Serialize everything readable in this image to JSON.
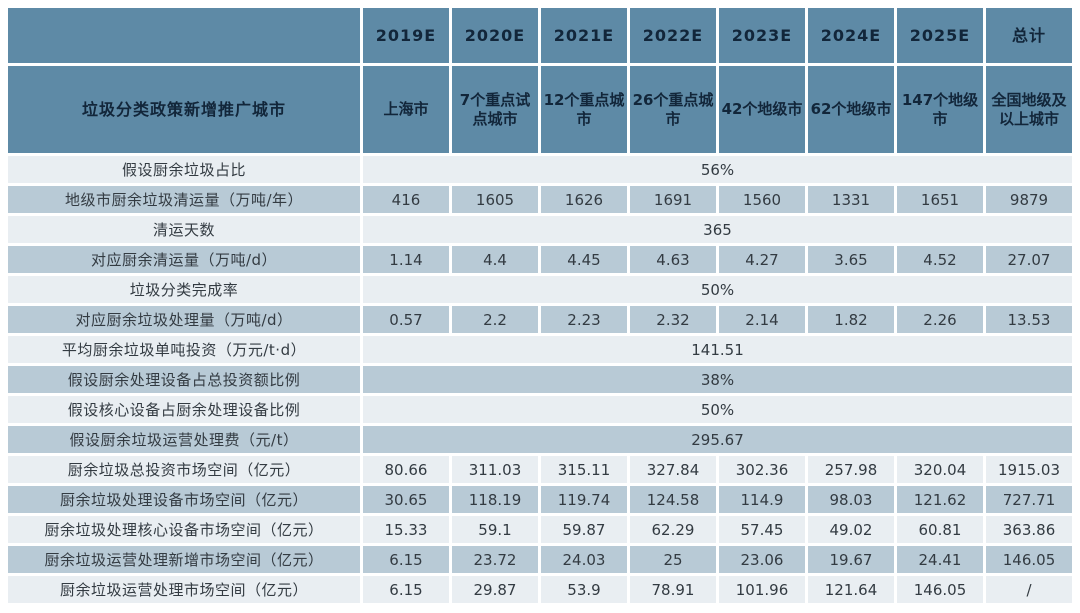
{
  "chart_data": {
    "type": "table",
    "corner_label": "",
    "label_header": "垃圾分类政策新增推广城市",
    "columns": [
      "2019E",
      "2020E",
      "2021E",
      "2022E",
      "2023E",
      "2024E",
      "2025E",
      "总计"
    ],
    "subcolumns": [
      "上海市",
      "7个重点试点城市",
      "12个重点城市",
      "26个重点城市",
      "42个地级市",
      "62个地级市",
      "147个地级市",
      "全国地级及以上城市"
    ],
    "rows": [
      {
        "label": "假设厨余垃圾占比",
        "merged": "56%"
      },
      {
        "label": "地级市厨余垃圾清运量（万吨/年）",
        "values": [
          "416",
          "1605",
          "1626",
          "1691",
          "1560",
          "1331",
          "1651",
          "9879"
        ]
      },
      {
        "label": "清运天数",
        "merged": "365"
      },
      {
        "label": "对应厨余清运量（万吨/d）",
        "values": [
          "1.14",
          "4.4",
          "4.45",
          "4.63",
          "4.27",
          "3.65",
          "4.52",
          "27.07"
        ]
      },
      {
        "label": "垃圾分类完成率",
        "merged": "50%"
      },
      {
        "label": "对应厨余垃圾处理量（万吨/d）",
        "values": [
          "0.57",
          "2.2",
          "2.23",
          "2.32",
          "2.14",
          "1.82",
          "2.26",
          "13.53"
        ]
      },
      {
        "label": "平均厨余垃圾单吨投资（万元/t·d）",
        "merged": "141.51"
      },
      {
        "label": "假设厨余处理设备占总投资额比例",
        "merged": "38%"
      },
      {
        "label": "假设核心设备占厨余处理设备比例",
        "merged": "50%"
      },
      {
        "label": "假设厨余垃圾运营处理费（元/t）",
        "merged": "295.67"
      },
      {
        "label": "厨余垃圾总投资市场空间（亿元）",
        "values": [
          "80.66",
          "311.03",
          "315.11",
          "327.84",
          "302.36",
          "257.98",
          "320.04",
          "1915.03"
        ]
      },
      {
        "label": "厨余垃圾处理设备市场空间（亿元）",
        "values": [
          "30.65",
          "118.19",
          "119.74",
          "124.58",
          "114.9",
          "98.03",
          "121.62",
          "727.71"
        ]
      },
      {
        "label": "厨余垃圾处理核心设备市场空间（亿元）",
        "values": [
          "15.33",
          "59.1",
          "59.87",
          "62.29",
          "57.45",
          "49.02",
          "60.81",
          "363.86"
        ]
      },
      {
        "label": "厨余垃圾运营处理新增市场空间（亿元）",
        "values": [
          "6.15",
          "23.72",
          "24.03",
          "25",
          "23.06",
          "19.67",
          "24.41",
          "146.05"
        ]
      },
      {
        "label": "厨余垃圾运营处理市场空间（亿元）",
        "values": [
          "6.15",
          "29.87",
          "53.9",
          "78.91",
          "101.96",
          "121.64",
          "146.05",
          "/"
        ]
      }
    ],
    "layout": {
      "merged_cells_span": "all 8 data columns",
      "stripe_order": "light row first, then alternating dark/light",
      "grid": "white 3px gaps between all cells"
    }
  },
  "colors": {
    "header_bg": "#5e8aa6",
    "header_text": "#12263a",
    "row_light": "#e9eef2",
    "row_dark": "#b8cad6",
    "body_text": "#333b42",
    "gap": "#ffffff"
  }
}
